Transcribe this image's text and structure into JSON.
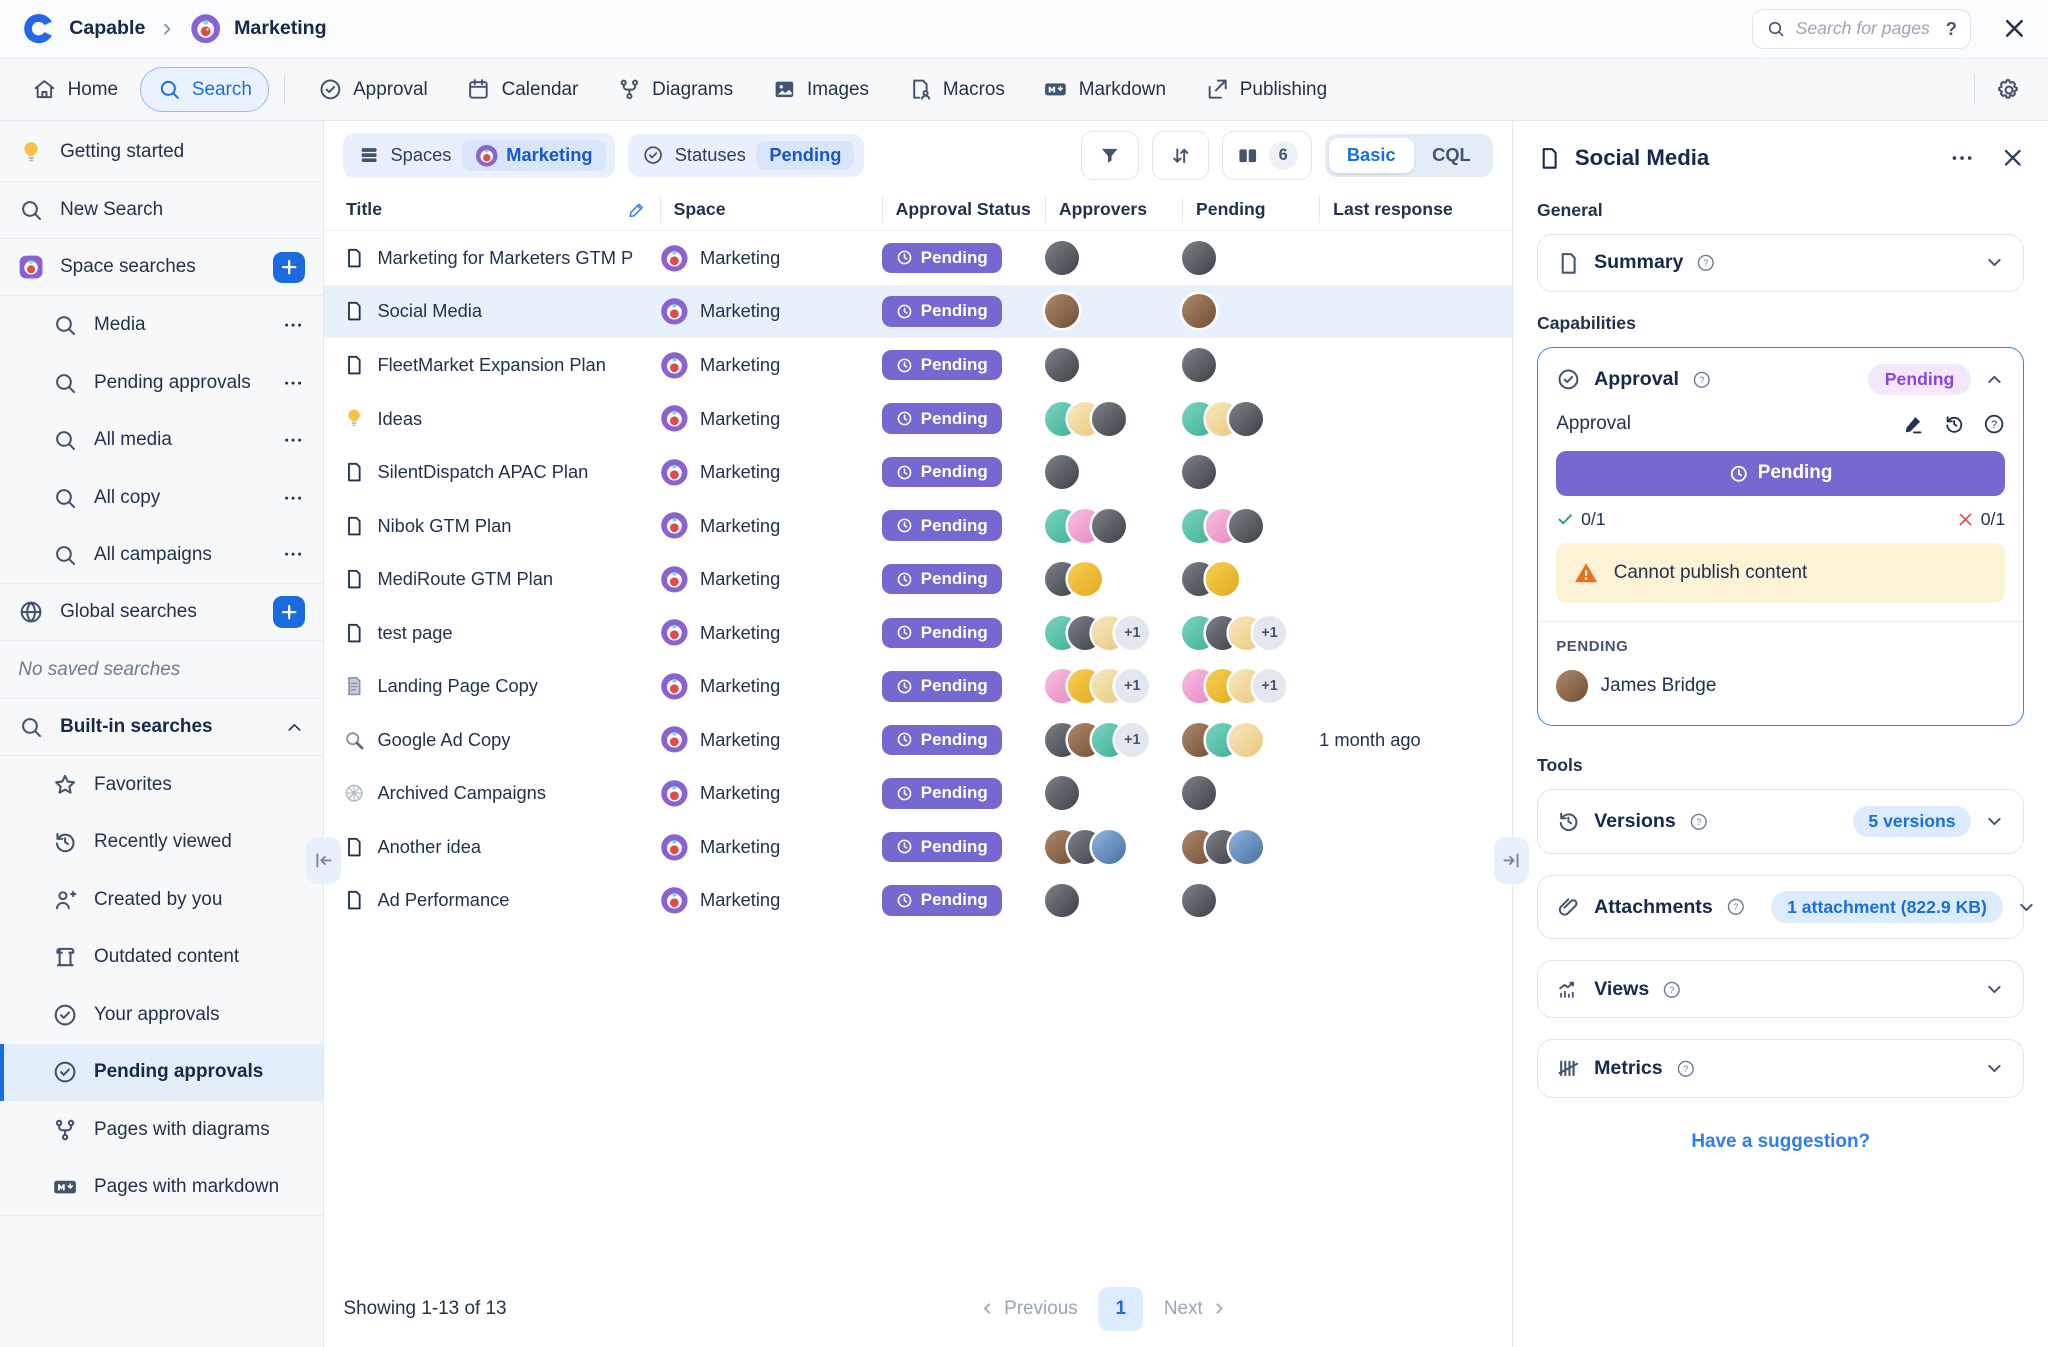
{
  "topbar": {
    "app_name": "Capable",
    "space_name": "Marketing",
    "search_placeholder": "Search for pages",
    "help": "?"
  },
  "nav": {
    "items": [
      {
        "label": "Home",
        "icon": "home"
      },
      {
        "label": "Search",
        "icon": "search",
        "active": true,
        "divider_after": true
      },
      {
        "label": "Approval",
        "icon": "check-circle"
      },
      {
        "label": "Calendar",
        "icon": "calendar"
      },
      {
        "label": "Diagrams",
        "icon": "branch"
      },
      {
        "label": "Images",
        "icon": "image"
      },
      {
        "label": "Macros",
        "icon": "macros"
      },
      {
        "label": "Markdown",
        "icon": "md-badge"
      },
      {
        "label": "Publishing",
        "icon": "publish"
      }
    ]
  },
  "sidebar": {
    "items": [
      {
        "type": "item",
        "icon": "bulb",
        "label": "Getting started",
        "divider": true
      },
      {
        "type": "item",
        "icon": "search",
        "label": "New Search",
        "divider": true
      },
      {
        "type": "header",
        "icon": "space-avatar",
        "label": "Space searches",
        "action": "plus",
        "divider": true
      },
      {
        "type": "sub",
        "icon": "search",
        "label": "Media",
        "action": "dots"
      },
      {
        "type": "sub",
        "icon": "search",
        "label": "Pending approvals",
        "action": "dots"
      },
      {
        "type": "sub",
        "icon": "search",
        "label": "All media",
        "action": "dots"
      },
      {
        "type": "sub",
        "icon": "search",
        "label": "All copy",
        "action": "dots"
      },
      {
        "type": "sub",
        "icon": "search",
        "label": "All campaigns",
        "action": "dots",
        "divider": true
      },
      {
        "type": "header",
        "icon": "globe",
        "label": "Global searches",
        "action": "plus",
        "divider": true
      },
      {
        "type": "info",
        "label": "No saved searches",
        "divider": true
      },
      {
        "type": "header",
        "icon": "search",
        "label": "Built-in searches",
        "action": "chevron-up",
        "bold": true,
        "divider": true
      },
      {
        "type": "sub",
        "icon": "star",
        "label": "Favorites"
      },
      {
        "type": "sub",
        "icon": "history",
        "label": "Recently viewed"
      },
      {
        "type": "sub",
        "icon": "person-plus",
        "label": "Created by you"
      },
      {
        "type": "sub",
        "icon": "scroll",
        "label": "Outdated content"
      },
      {
        "type": "sub",
        "icon": "check-circle",
        "label": "Your approvals"
      },
      {
        "type": "sub",
        "icon": "check-circle",
        "label": "Pending approvals",
        "selected": true
      },
      {
        "type": "sub",
        "icon": "branch",
        "label": "Pages with diagrams"
      },
      {
        "type": "sub",
        "icon": "md-badge",
        "label": "Pages with markdown",
        "divider": true
      }
    ]
  },
  "filters": {
    "spaces_label": "Spaces",
    "spaces_value": "Marketing",
    "statuses_label": "Statuses",
    "statuses_value": "Pending",
    "columns_count": "6",
    "mode_basic": "Basic",
    "mode_cql": "CQL"
  },
  "table": {
    "columns": [
      "Title",
      "Space",
      "Approval Status",
      "Approvers",
      "Pending",
      "Last response"
    ],
    "status_label": "Pending",
    "rows": [
      {
        "title": "Marketing for Marketers GTM P",
        "icon": "page",
        "space": "Marketing",
        "approvers": [
          "a-dark"
        ],
        "pending": [
          "a-dark"
        ],
        "last_response": ""
      },
      {
        "title": "Social Media",
        "icon": "page",
        "space": "Marketing",
        "approvers": [
          "a-brown"
        ],
        "pending": [
          "a-brown"
        ],
        "last_response": "",
        "selected": true
      },
      {
        "title": "FleetMarket Expansion Plan",
        "icon": "page",
        "space": "Marketing",
        "approvers": [
          "a-dark"
        ],
        "pending": [
          "a-dark"
        ],
        "last_response": ""
      },
      {
        "title": "Ideas",
        "icon": "bulb",
        "space": "Marketing",
        "approvers": [
          "a-bmo",
          "a-finn",
          "a-dark"
        ],
        "pending": [
          "a-bmo",
          "a-finn",
          "a-dark"
        ],
        "last_response": ""
      },
      {
        "title": "SilentDispatch APAC Plan",
        "icon": "page",
        "space": "Marketing",
        "approvers": [
          "a-dark"
        ],
        "pending": [
          "a-dark"
        ],
        "last_response": ""
      },
      {
        "title": "Nibok GTM Plan",
        "icon": "page",
        "space": "Marketing",
        "approvers": [
          "a-bmo",
          "a-pink",
          "a-dark"
        ],
        "pending": [
          "a-bmo",
          "a-pink",
          "a-dark"
        ],
        "last_response": ""
      },
      {
        "title": "MediRoute GTM Plan",
        "icon": "page",
        "space": "Marketing",
        "approvers": [
          "a-dark",
          "a-jake"
        ],
        "pending": [
          "a-dark",
          "a-jake"
        ],
        "last_response": ""
      },
      {
        "title": "test page",
        "icon": "page",
        "space": "Marketing",
        "approvers": [
          "a-bmo",
          "a-dark",
          "a-finn"
        ],
        "approvers_extra": "+1",
        "pending": [
          "a-bmo",
          "a-dark",
          "a-finn"
        ],
        "pending_extra": "+1",
        "last_response": ""
      },
      {
        "title": "Landing Page Copy",
        "icon": "copy-gray",
        "space": "Marketing",
        "approvers": [
          "a-pink",
          "a-jake",
          "a-finn"
        ],
        "approvers_extra": "+1",
        "pending": [
          "a-pink",
          "a-jake",
          "a-finn"
        ],
        "pending_extra": "+1",
        "last_response": ""
      },
      {
        "title": "Google Ad Copy",
        "icon": "search-gray",
        "space": "Marketing",
        "approvers": [
          "a-dark",
          "a-brown",
          "a-bmo"
        ],
        "approvers_extra": "+1",
        "pending": [
          "a-brown",
          "a-bmo",
          "a-finn"
        ],
        "last_response": "1 month ago"
      },
      {
        "title": "Archived Campaigns",
        "icon": "web-gray",
        "space": "Marketing",
        "approvers": [
          "a-dark"
        ],
        "pending": [
          "a-dark"
        ],
        "last_response": ""
      },
      {
        "title": "Another idea",
        "icon": "page",
        "space": "Marketing",
        "approvers": [
          "a-brown",
          "a-dark",
          "a-blue"
        ],
        "pending": [
          "a-brown",
          "a-dark",
          "a-blue"
        ],
        "last_response": ""
      },
      {
        "title": "Ad Performance",
        "icon": "page",
        "space": "Marketing",
        "approvers": [
          "a-dark"
        ],
        "pending": [
          "a-dark"
        ],
        "last_response": ""
      }
    ]
  },
  "pagination": {
    "showing": "Showing 1-13 of 13",
    "previous": "Previous",
    "page": "1",
    "next": "Next"
  },
  "panel": {
    "title": "Social Media",
    "general_label": "General",
    "capabilities_label": "Capabilities",
    "tools_label": "Tools",
    "summary_label": "Summary",
    "approval": {
      "label": "Approval",
      "badge": "Pending",
      "inner_label": "Approval",
      "status_bar": "Pending",
      "approved_count": "0/1",
      "rejected_count": "0/1",
      "warning": "Cannot publish content",
      "pending_caps": "PENDING",
      "pending_user": "James Bridge"
    },
    "tools": [
      {
        "label": "Versions",
        "icon": "history",
        "badge": "5 versions"
      },
      {
        "label": "Attachments",
        "icon": "paperclip",
        "badge": "1 attachment (822.9 KB)"
      },
      {
        "label": "Views",
        "icon": "views",
        "badge": ""
      },
      {
        "label": "Metrics",
        "icon": "metrics",
        "badge": ""
      }
    ],
    "suggestion_link": "Have a suggestion?"
  },
  "colors": {
    "accent_blue": "#1a6fe0",
    "badge_purple": "#7568d1",
    "warning_bg": "#fcf3d6",
    "warning_icon": "#e8721c",
    "selected_row": "#e7f0fb"
  }
}
